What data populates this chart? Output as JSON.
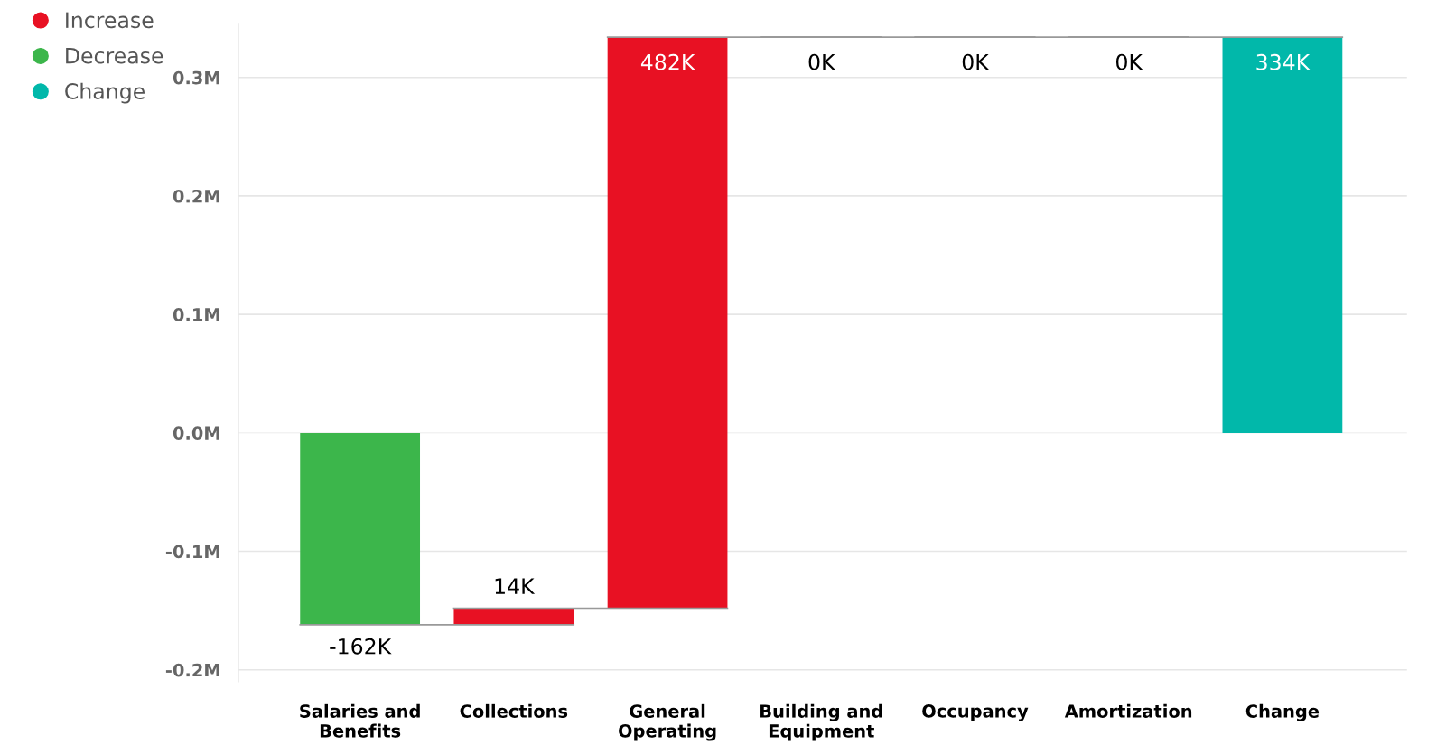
{
  "chart_data": {
    "type": "bar",
    "categories": [
      "Salaries and Benefits",
      "Collections",
      "General Operating",
      "Building and Equipment",
      "Occupancy",
      "Amortization",
      "Change"
    ],
    "series": [
      {
        "name": "Increase",
        "color": "#e81123",
        "colors": [
          null,
          "#e81123",
          "#e81123",
          "#999999",
          "#999999",
          "#999999",
          null
        ],
        "values": [
          null,
          14000,
          482000,
          0,
          0,
          0,
          null
        ],
        "base": [
          null,
          -162000,
          -148000,
          334000,
          334000,
          334000,
          null
        ],
        "value_labels": [
          null,
          "14K",
          "482K",
          "0K",
          "0K",
          "0K",
          null
        ]
      },
      {
        "name": "Decrease",
        "color": "#3cb64b",
        "values": [
          -162000,
          null,
          null,
          null,
          null,
          null,
          null
        ],
        "base": [
          0,
          null,
          null,
          null,
          null,
          null,
          null
        ],
        "value_labels": [
          "-162K",
          null,
          null,
          null,
          null,
          null,
          null
        ]
      },
      {
        "name": "Change",
        "color": "#01b8aa",
        "values": [
          null,
          null,
          null,
          null,
          null,
          null,
          334000
        ],
        "base": [
          null,
          null,
          null,
          null,
          null,
          null,
          0
        ],
        "value_labels": [
          null,
          null,
          null,
          null,
          null,
          null,
          "334K"
        ]
      }
    ],
    "ylim": [
      -210000,
      345000
    ],
    "yticks": [
      {
        "value": -200000,
        "label": "-0.2M"
      },
      {
        "value": -100000,
        "label": "-0.1M"
      },
      {
        "value": 0,
        "label": "0.0M"
      },
      {
        "value": 100000,
        "label": "0.1M"
      },
      {
        "value": 200000,
        "label": "0.2M"
      },
      {
        "value": 300000,
        "label": "0.3M"
      }
    ],
    "grid": "y",
    "legend": "top left"
  }
}
